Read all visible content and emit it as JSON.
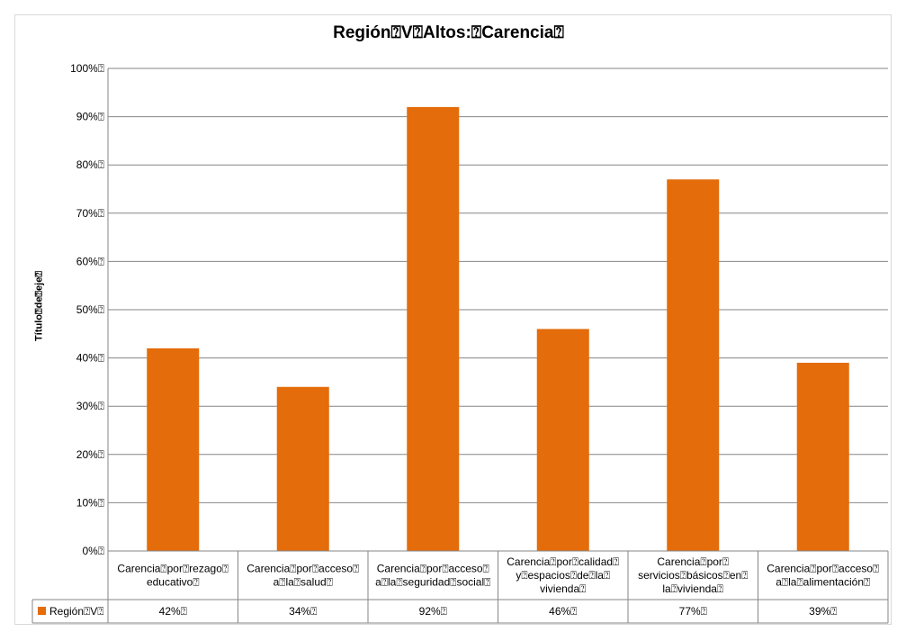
{
  "chart_data": {
    "type": "bar",
    "title": "Región⍰V⍰Altos:⍰Carencia⍰",
    "ylabel": "Título⍰de⍰eje⍰",
    "xlabel": "",
    "ylim": [
      0,
      100
    ],
    "yticks": [
      "0%⍰",
      "10%⍰",
      "20%⍰",
      "30%⍰",
      "40%⍰",
      "50%⍰",
      "60%⍰",
      "70%⍰",
      "80%⍰",
      "90%⍰",
      "100%⍰"
    ],
    "categories": [
      [
        "Carencia⍰por⍰rezago⍰",
        "educativo⍰"
      ],
      [
        "Carencia⍰por⍰acceso⍰",
        "a⍰la⍰salud⍰"
      ],
      [
        "Carencia⍰por⍰acceso⍰",
        "a⍰la⍰seguridad⍰social⍰"
      ],
      [
        "Carencia⍰por⍰calidad⍰",
        "y⍰espacios⍰de⍰la⍰",
        "vivienda⍰"
      ],
      [
        "Carencia⍰por⍰",
        "servicios⍰básicos⍰en⍰",
        "la⍰vivienda⍰"
      ],
      [
        "Carencia⍰por⍰acceso⍰",
        "a⍰la⍰alimentación⍰"
      ]
    ],
    "series": [
      {
        "name": "Región⍰V⍰",
        "values": [
          42,
          34,
          92,
          46,
          77,
          39
        ],
        "labels": [
          "42%⍰",
          "34%⍰",
          "92%⍰",
          "46%⍰",
          "77%⍰",
          "39%⍰"
        ],
        "color": "#e46c0a"
      }
    ],
    "grid": true,
    "legend": "data-table"
  }
}
